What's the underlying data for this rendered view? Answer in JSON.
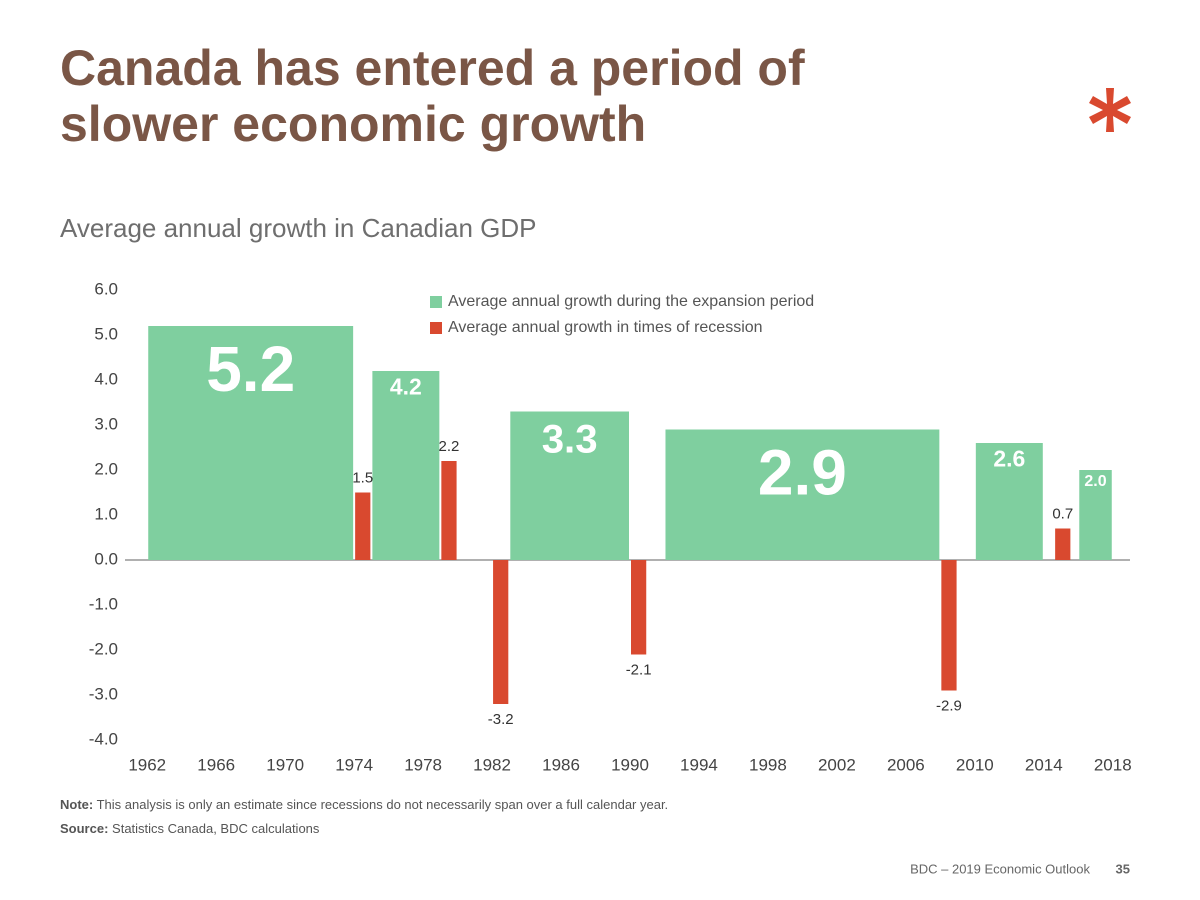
{
  "chart_data": {
    "type": "bar",
    "title": "Canada has entered a period of slower economic growth",
    "subtitle": "Average annual growth in Canadian GDP",
    "series": [
      {
        "name": "Average annual growth during the expansion period",
        "color": "#7fcf9f",
        "x_start": [
          1962,
          1975,
          1983,
          1992,
          2010,
          2016
        ],
        "x_end": [
          1974,
          1979,
          1990,
          2008,
          2014,
          2018
        ],
        "values": [
          5.2,
          4.2,
          3.3,
          2.9,
          2.6,
          2.0
        ],
        "value_labels": [
          "5.2",
          "4.2",
          "3.3",
          "2.9",
          "2.6",
          "2.0"
        ]
      },
      {
        "name": "Average annual growth in times of recession",
        "color": "#d9492f",
        "x_start": [
          1974,
          1979,
          1982,
          1990,
          2008,
          2014.6
        ],
        "x_end": [
          1975,
          1980,
          1983,
          1991,
          2009,
          2015.6
        ],
        "values": [
          1.5,
          2.2,
          -3.2,
          -2.1,
          -2.9,
          0.7
        ],
        "value_labels": [
          "1.5",
          "2.2",
          "-3.2",
          "-2.1",
          "-2.9",
          "0.7"
        ]
      }
    ],
    "xlim": [
      1961,
      2019
    ],
    "xticks": [
      1962,
      1966,
      1970,
      1974,
      1978,
      1982,
      1986,
      1990,
      1994,
      1998,
      2002,
      2006,
      2010,
      2014,
      2018
    ],
    "ylim": [
      -4,
      6
    ],
    "yticks": [
      {
        "value": -4,
        "label": "-4.0"
      },
      {
        "value": -3,
        "label": "-3.0"
      },
      {
        "value": -2,
        "label": "-2.0"
      },
      {
        "value": -1,
        "label": "-1.0"
      },
      {
        "value": 0,
        "label": "0.0"
      },
      {
        "value": 1,
        "label": "1.0"
      },
      {
        "value": 2,
        "label": "2.0"
      },
      {
        "value": 3,
        "label": "3.0"
      },
      {
        "value": 4,
        "label": "4.0"
      },
      {
        "value": 5,
        "label": "5.0"
      },
      {
        "value": 6,
        "label": "6.0"
      }
    ],
    "note_label": "Note:",
    "note": "This analysis is only an estimate since recessions do not necessarily span over a full calendar year.",
    "source_label": "Source:",
    "source": "Statistics Canada, BDC calculations",
    "footer": "BDC – 2019 Economic Outlook",
    "page_number": "35"
  }
}
